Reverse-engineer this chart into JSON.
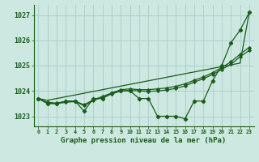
{
  "title": "Graphe pression niveau de la mer (hPa)",
  "background_color": "#cce8e0",
  "grid_color": "#aacccc",
  "line_color": "#1a5c1a",
  "x_labels": [
    "0",
    "1",
    "2",
    "3",
    "4",
    "5",
    "6",
    "7",
    "8",
    "9",
    "10",
    "11",
    "12",
    "13",
    "14",
    "15",
    "16",
    "17",
    "18",
    "19",
    "20",
    "21",
    "22",
    "23"
  ],
  "ylim": [
    1022.6,
    1027.4
  ],
  "yticks": [
    1023,
    1024,
    1025,
    1026,
    1027
  ],
  "series_jagged": [
    1023.7,
    1023.5,
    1023.5,
    1023.6,
    1023.6,
    1023.2,
    1023.7,
    1023.7,
    1023.9,
    1024.0,
    1024.0,
    1023.7,
    1023.7,
    1023.0,
    1023.0,
    1023.0,
    1022.9,
    1023.6,
    1023.6,
    1024.4,
    1025.0,
    1025.9,
    1026.4,
    1027.1
  ],
  "series_smooth1": [
    1023.7,
    1023.55,
    1023.52,
    1023.58,
    1023.6,
    1023.45,
    1023.65,
    1023.78,
    1023.92,
    1024.05,
    1024.08,
    1024.05,
    1024.05,
    1024.08,
    1024.12,
    1024.18,
    1024.28,
    1024.42,
    1024.55,
    1024.72,
    1024.92,
    1025.15,
    1025.45,
    1025.72
  ],
  "series_smooth2": [
    1023.7,
    1023.52,
    1023.5,
    1023.55,
    1023.58,
    1023.42,
    1023.62,
    1023.75,
    1023.88,
    1024.0,
    1024.02,
    1024.0,
    1023.98,
    1024.0,
    1024.04,
    1024.1,
    1024.2,
    1024.35,
    1024.48,
    1024.65,
    1024.85,
    1025.05,
    1025.35,
    1025.6
  ],
  "series_linear": [
    1023.7,
    1023.63,
    1023.7,
    1023.77,
    1023.84,
    1023.91,
    1023.98,
    1024.05,
    1024.12,
    1024.19,
    1024.26,
    1024.33,
    1024.4,
    1024.47,
    1024.54,
    1024.61,
    1024.68,
    1024.75,
    1024.82,
    1024.89,
    1024.96,
    1025.03,
    1025.1,
    1027.1
  ]
}
